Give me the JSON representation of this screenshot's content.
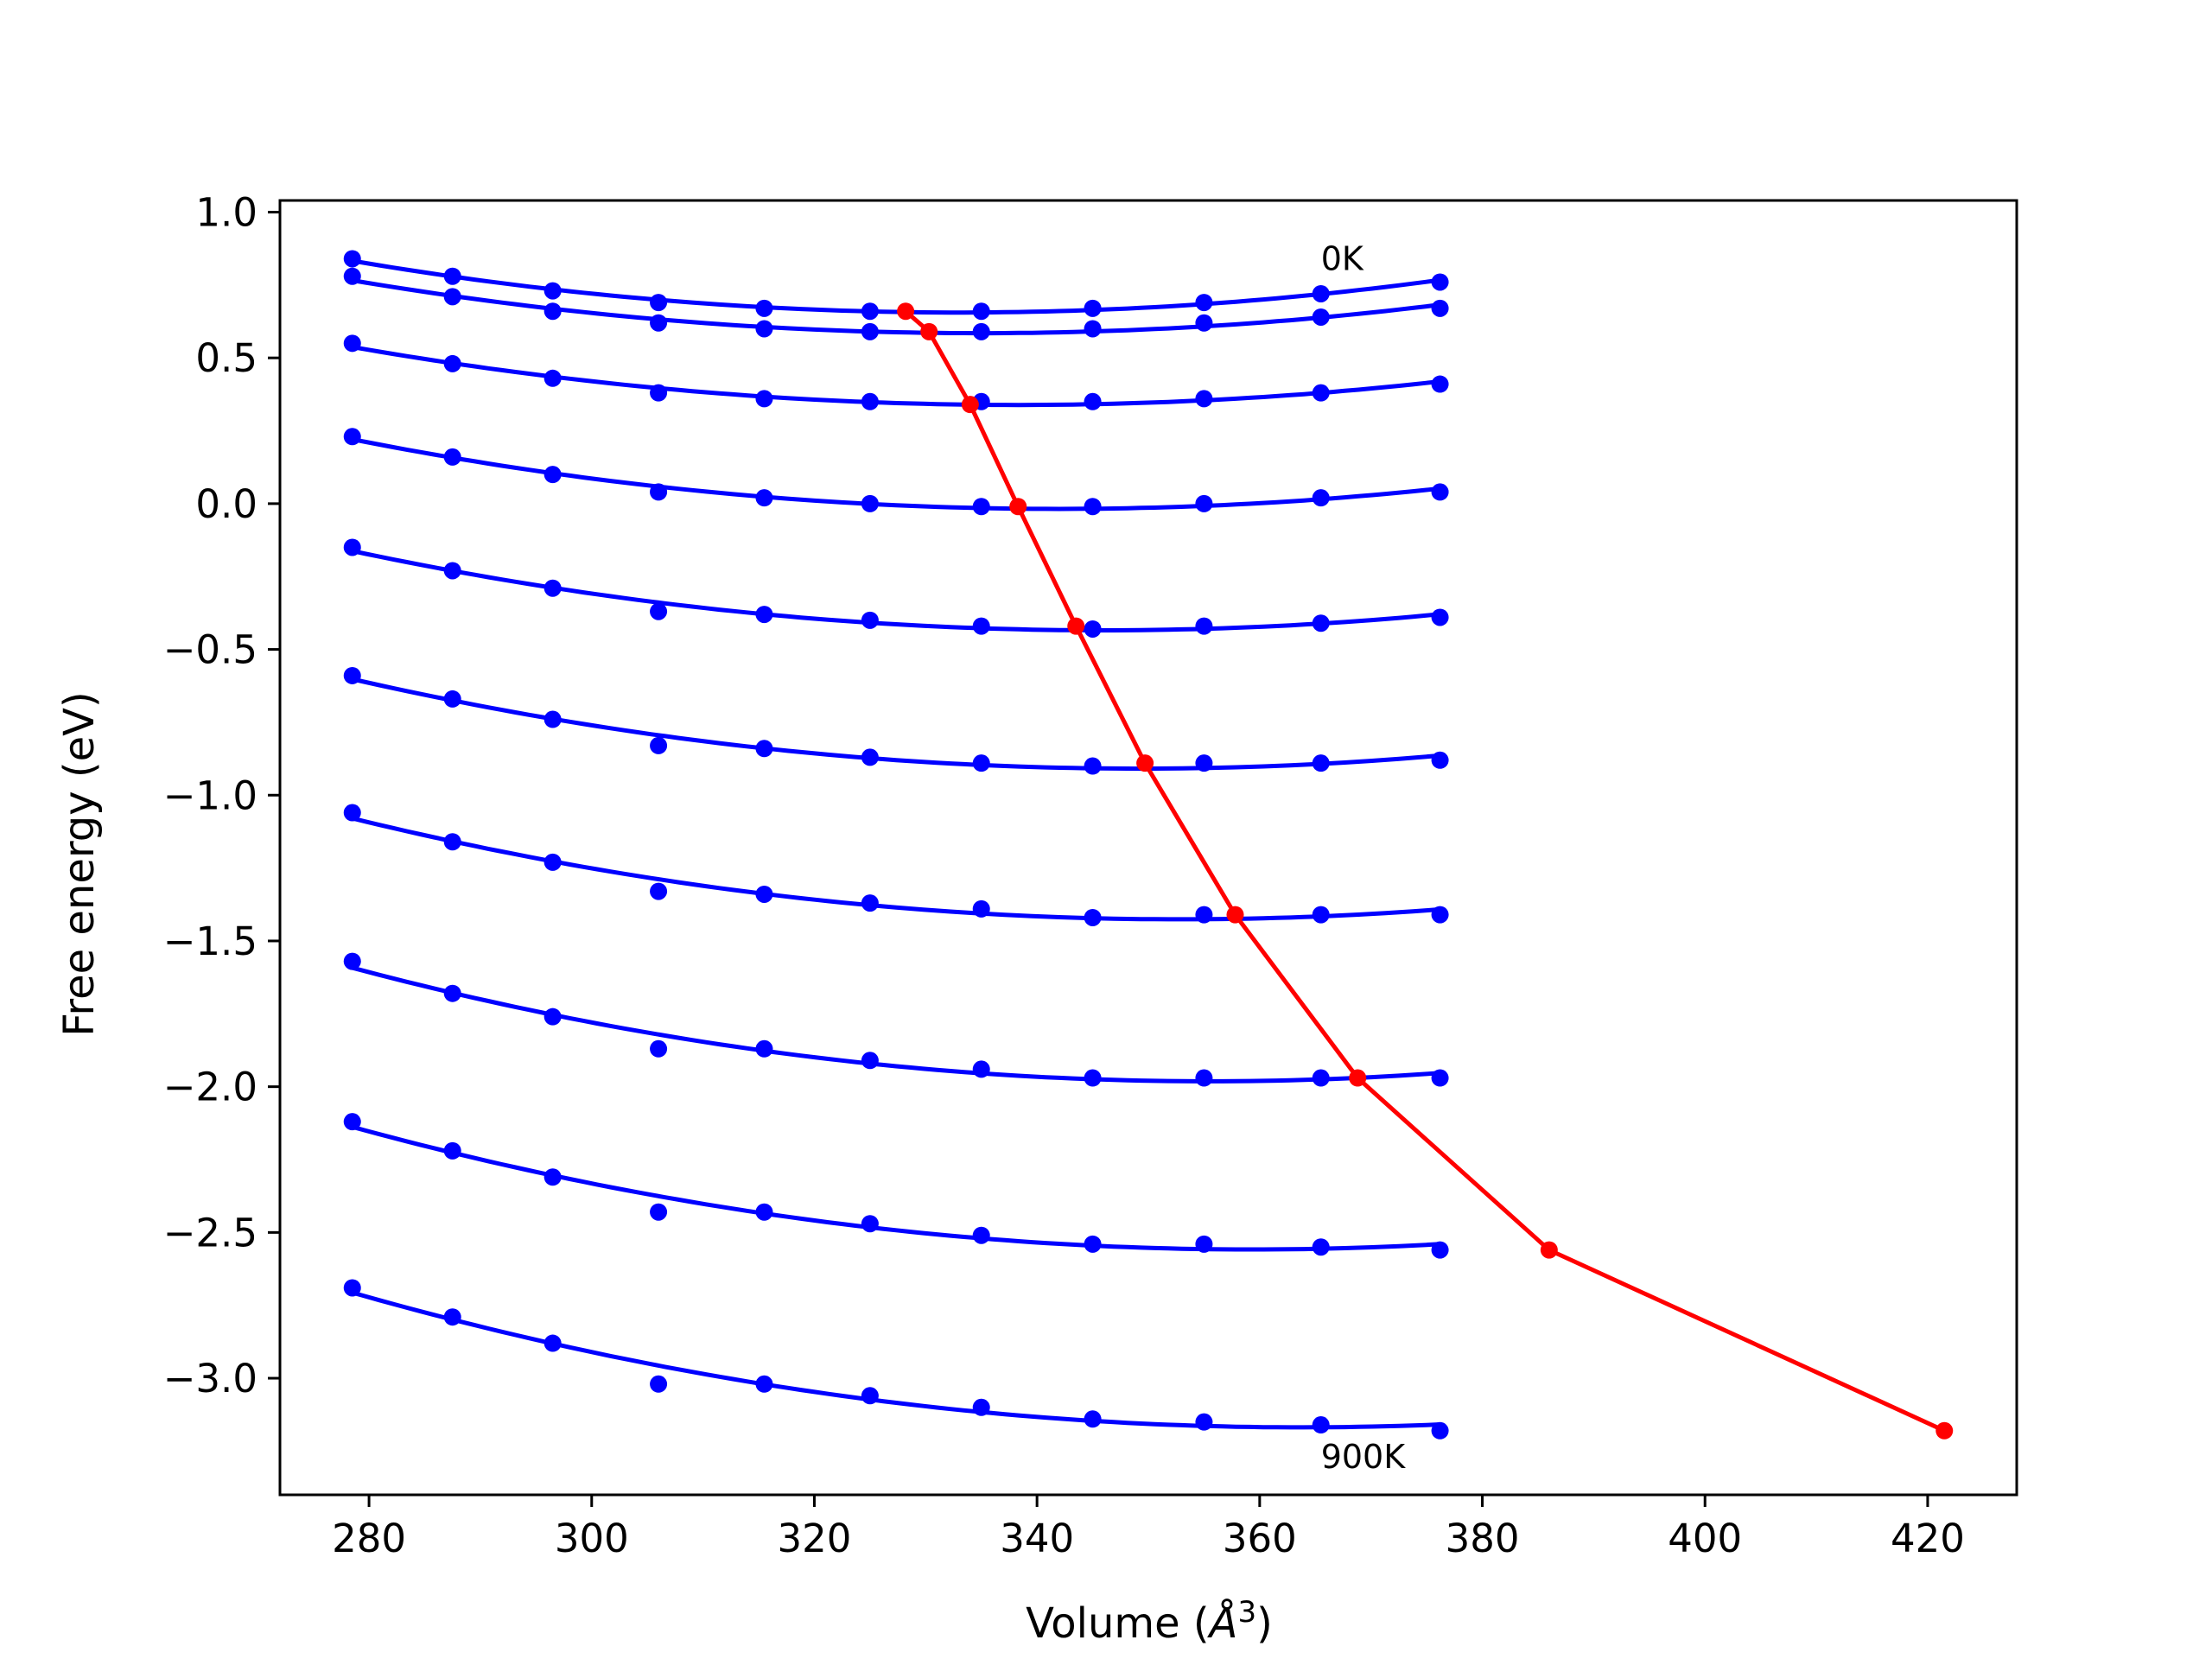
{
  "chart_data": {
    "type": "line",
    "xlabel_prefix": "Volume (",
    "xlabel_symbol": "Å",
    "xlabel_sup": "3",
    "xlabel_suffix": ")",
    "ylabel": "Free energy (eV)",
    "xlim": [
      272,
      428
    ],
    "ylim": [
      -3.4,
      1.04
    ],
    "xticks": [
      {
        "value": 280,
        "label": "280"
      },
      {
        "value": 300,
        "label": "300"
      },
      {
        "value": 320,
        "label": "320"
      },
      {
        "value": 340,
        "label": "340"
      },
      {
        "value": 360,
        "label": "360"
      },
      {
        "value": 380,
        "label": "380"
      },
      {
        "value": 400,
        "label": "400"
      },
      {
        "value": 420,
        "label": "420"
      }
    ],
    "yticks": [
      {
        "value": 1.0,
        "label": "1.0"
      },
      {
        "value": 0.5,
        "label": "0.5"
      },
      {
        "value": 0.0,
        "label": "0.0"
      },
      {
        "value": -0.5,
        "label": "−0.5"
      },
      {
        "value": -1.0,
        "label": "−1.0"
      },
      {
        "value": -1.5,
        "label": "−1.5"
      },
      {
        "value": -2.0,
        "label": "−2.0"
      },
      {
        "value": -2.5,
        "label": "−2.5"
      },
      {
        "value": -3.0,
        "label": "−3.0"
      }
    ],
    "grid": false,
    "legend": "none",
    "colors": {
      "isotherm": "#0000ff",
      "minimum_path": "#ff0000",
      "axes": "#000000"
    },
    "x": [
      278.5,
      287.5,
      296.5,
      306.0,
      315.5,
      325.0,
      335.0,
      345.0,
      355.0,
      365.5,
      376.2
    ],
    "series": [
      {
        "values": [
          0.84,
          0.78,
          0.73,
          0.69,
          0.67,
          0.66,
          0.66,
          0.67,
          0.69,
          0.72,
          0.76
        ]
      },
      {
        "values": [
          0.78,
          0.71,
          0.66,
          0.62,
          0.6,
          0.59,
          0.59,
          0.6,
          0.62,
          0.64,
          0.67
        ]
      },
      {
        "values": [
          0.55,
          0.48,
          0.43,
          0.38,
          0.36,
          0.35,
          0.35,
          0.35,
          0.36,
          0.38,
          0.41
        ]
      },
      {
        "values": [
          0.23,
          0.16,
          0.1,
          0.04,
          0.02,
          0.0,
          -0.01,
          -0.01,
          0.0,
          0.02,
          0.04
        ]
      },
      {
        "values": [
          -0.15,
          -0.23,
          -0.29,
          -0.37,
          -0.38,
          -0.4,
          -0.42,
          -0.43,
          -0.42,
          -0.41,
          -0.39
        ]
      },
      {
        "values": [
          -0.59,
          -0.67,
          -0.74,
          -0.83,
          -0.84,
          -0.87,
          -0.89,
          -0.9,
          -0.89,
          -0.89,
          -0.88
        ]
      },
      {
        "values": [
          -1.06,
          -1.16,
          -1.23,
          -1.33,
          -1.34,
          -1.37,
          -1.39,
          -1.42,
          -1.41,
          -1.41,
          -1.41
        ]
      },
      {
        "values": [
          -1.57,
          -1.68,
          -1.76,
          -1.87,
          -1.87,
          -1.91,
          -1.94,
          -1.97,
          -1.97,
          -1.97,
          -1.97
        ]
      },
      {
        "values": [
          -2.12,
          -2.22,
          -2.31,
          -2.43,
          -2.43,
          -2.47,
          -2.51,
          -2.54,
          -2.54,
          -2.55,
          -2.56
        ]
      },
      {
        "values": [
          -2.69,
          -2.79,
          -2.88,
          -3.02,
          -3.02,
          -3.06,
          -3.1,
          -3.14,
          -3.15,
          -3.16,
          -3.18
        ]
      }
    ],
    "minimum_path": {
      "x": [
        328.2,
        330.3,
        334.0,
        338.3,
        343.5,
        349.7,
        357.8,
        368.8,
        386.0,
        421.5
      ],
      "y": [
        0.66,
        0.59,
        0.34,
        -0.01,
        -0.42,
        -0.89,
        -1.41,
        -1.97,
        -2.56,
        -3.18
      ]
    },
    "annotations": [
      {
        "text": "0K",
        "x": 365.5,
        "y": 0.84
      },
      {
        "text": "900K",
        "x": 365.5,
        "y": -3.27
      }
    ]
  }
}
